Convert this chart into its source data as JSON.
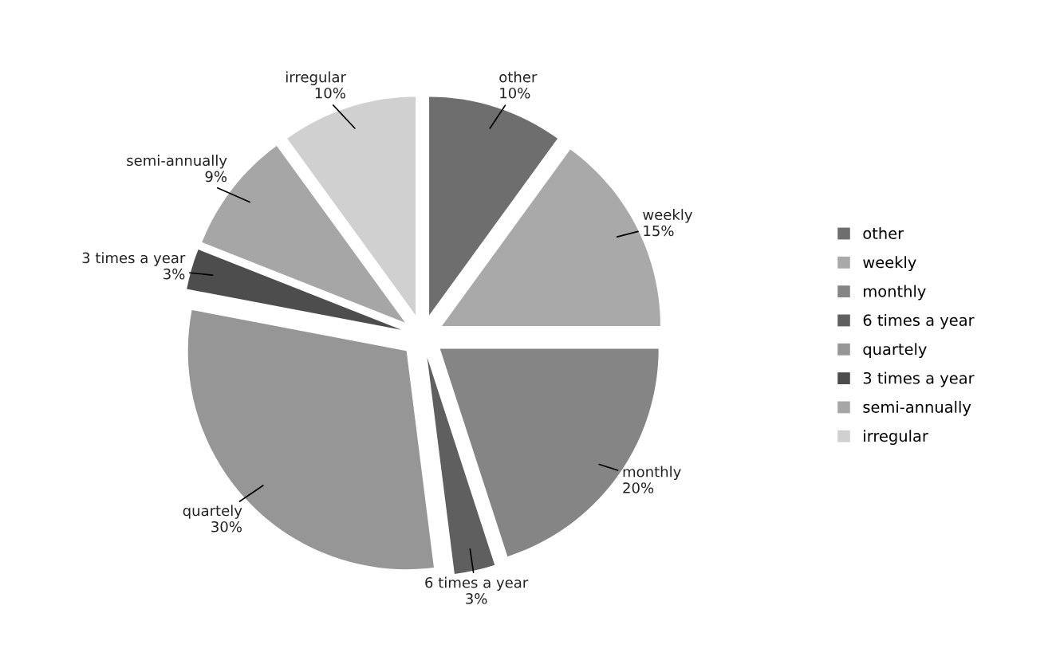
{
  "chart_data": {
    "type": "pie",
    "categories": [
      "other",
      "weekly",
      "monthly",
      "6 times a year",
      "quartely",
      "3 times a year",
      "semi-annually",
      "irregular"
    ],
    "values": [
      10,
      15,
      20,
      3,
      30,
      3,
      9,
      10
    ],
    "value_labels": [
      "10%",
      "15%",
      "20%",
      "3%",
      "30%",
      "3%",
      "9%",
      "10%"
    ],
    "colors": [
      "#6e6e6e",
      "#a9a9a9",
      "#858585",
      "#5f5f5f",
      "#969696",
      "#4d4d4d",
      "#a6a6a6",
      "#d0d0d0"
    ],
    "legend": "right"
  }
}
